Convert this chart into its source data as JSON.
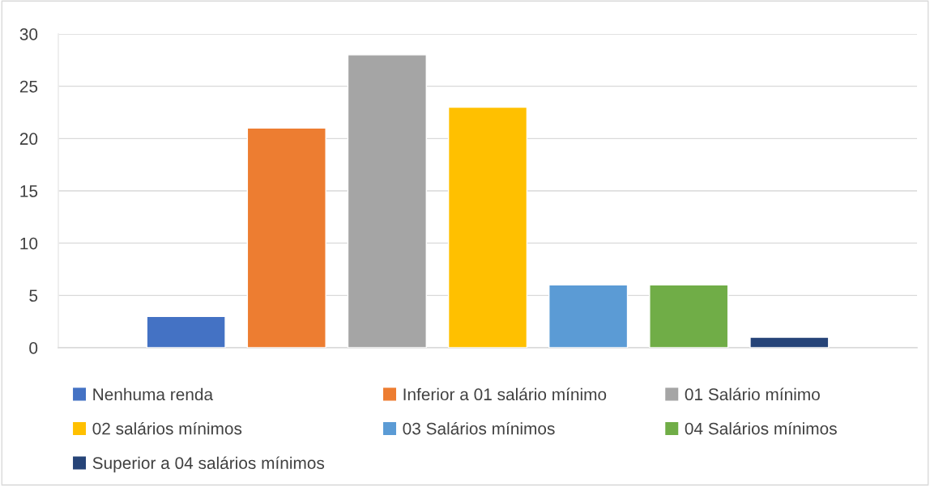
{
  "chart_data": {
    "type": "bar",
    "categories": [
      null
    ],
    "series": [
      {
        "name": "Nenhuma renda",
        "color": "#4472c4",
        "values": [
          3
        ]
      },
      {
        "name": "Inferior a 01 salário mínimo",
        "color": "#ed7d31",
        "values": [
          21
        ]
      },
      {
        "name": "01 Salário mínimo",
        "color": "#a5a5a5",
        "values": [
          28
        ]
      },
      {
        "name": "02 salários mínimos",
        "color": "#ffc000",
        "values": [
          23
        ]
      },
      {
        "name": "03 Salários mínimos",
        "color": "#5b9bd5",
        "values": [
          6
        ]
      },
      {
        "name": "04 Salários mínimos",
        "color": "#70ad47",
        "values": [
          6
        ]
      },
      {
        "name": "Superior a 04 salários mínimos",
        "color": "#264478",
        "values": [
          1
        ]
      }
    ],
    "ylim": [
      0,
      30
    ],
    "yticks": [
      0,
      5,
      10,
      15,
      20,
      25,
      30
    ],
    "grid": "y",
    "legend": "bottom"
  }
}
